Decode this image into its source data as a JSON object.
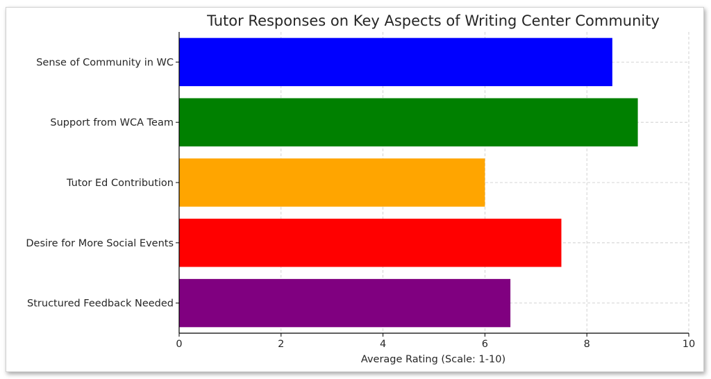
{
  "chart_data": {
    "type": "bar",
    "orientation": "horizontal",
    "title": "Tutor Responses on Key Aspects of Writing Center Community",
    "xlabel": "Average Rating (Scale: 1-10)",
    "ylabel": "",
    "categories": [
      "Sense of Community in WC",
      "Support from WCA Team",
      "Tutor Ed Contribution",
      "Desire for More Social Events",
      "Structured Feedback Needed"
    ],
    "values": [
      8.5,
      9,
      6,
      7.5,
      6.5
    ],
    "colors": [
      "#0000ff",
      "#008000",
      "#ffa500",
      "#ff0000",
      "#800080"
    ],
    "xlim": [
      0,
      10
    ],
    "xticks": [
      "0",
      "2",
      "4",
      "6",
      "8",
      "10"
    ],
    "grid": true
  }
}
